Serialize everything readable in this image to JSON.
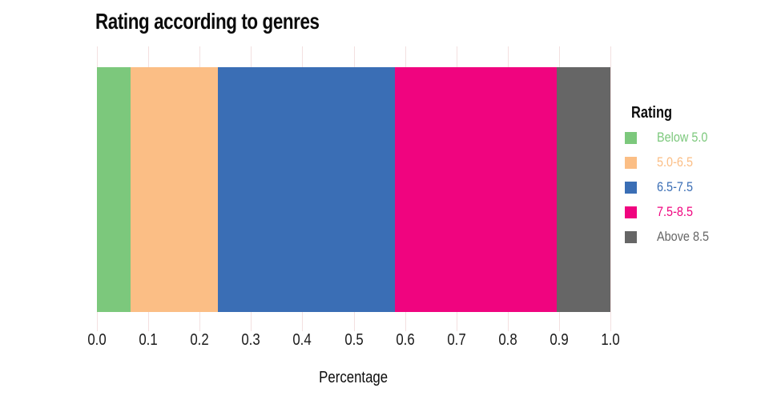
{
  "chart_data": {
    "type": "bar",
    "subtype": "stacked-horizontal-100pct",
    "title": "Rating according to genres",
    "xlabel": "Percentage",
    "ylabel": "",
    "xlim": [
      0.0,
      1.0
    ],
    "x_tick_labels": [
      "0.0",
      "0.1",
      "0.2",
      "0.3",
      "0.4",
      "0.5",
      "0.6",
      "0.7",
      "0.8",
      "0.9",
      "1.0"
    ],
    "grid": true,
    "gridline_color": "#f3e0e0",
    "background_color": "#ffffff",
    "legend": {
      "title": "Rating",
      "position": "right"
    },
    "series": [
      {
        "name": "Below 5.0",
        "value": 0.065,
        "color": "#7cc87c"
      },
      {
        "name": "5.0-6.5",
        "value": 0.17,
        "color": "#fbbe85"
      },
      {
        "name": "6.5-7.5",
        "value": 0.345,
        "color": "#3a6eb5"
      },
      {
        "name": "7.5-8.5",
        "value": 0.315,
        "color": "#f0047f"
      },
      {
        "name": "Above 8.5",
        "value": 0.105,
        "color": "#666666"
      }
    ]
  }
}
